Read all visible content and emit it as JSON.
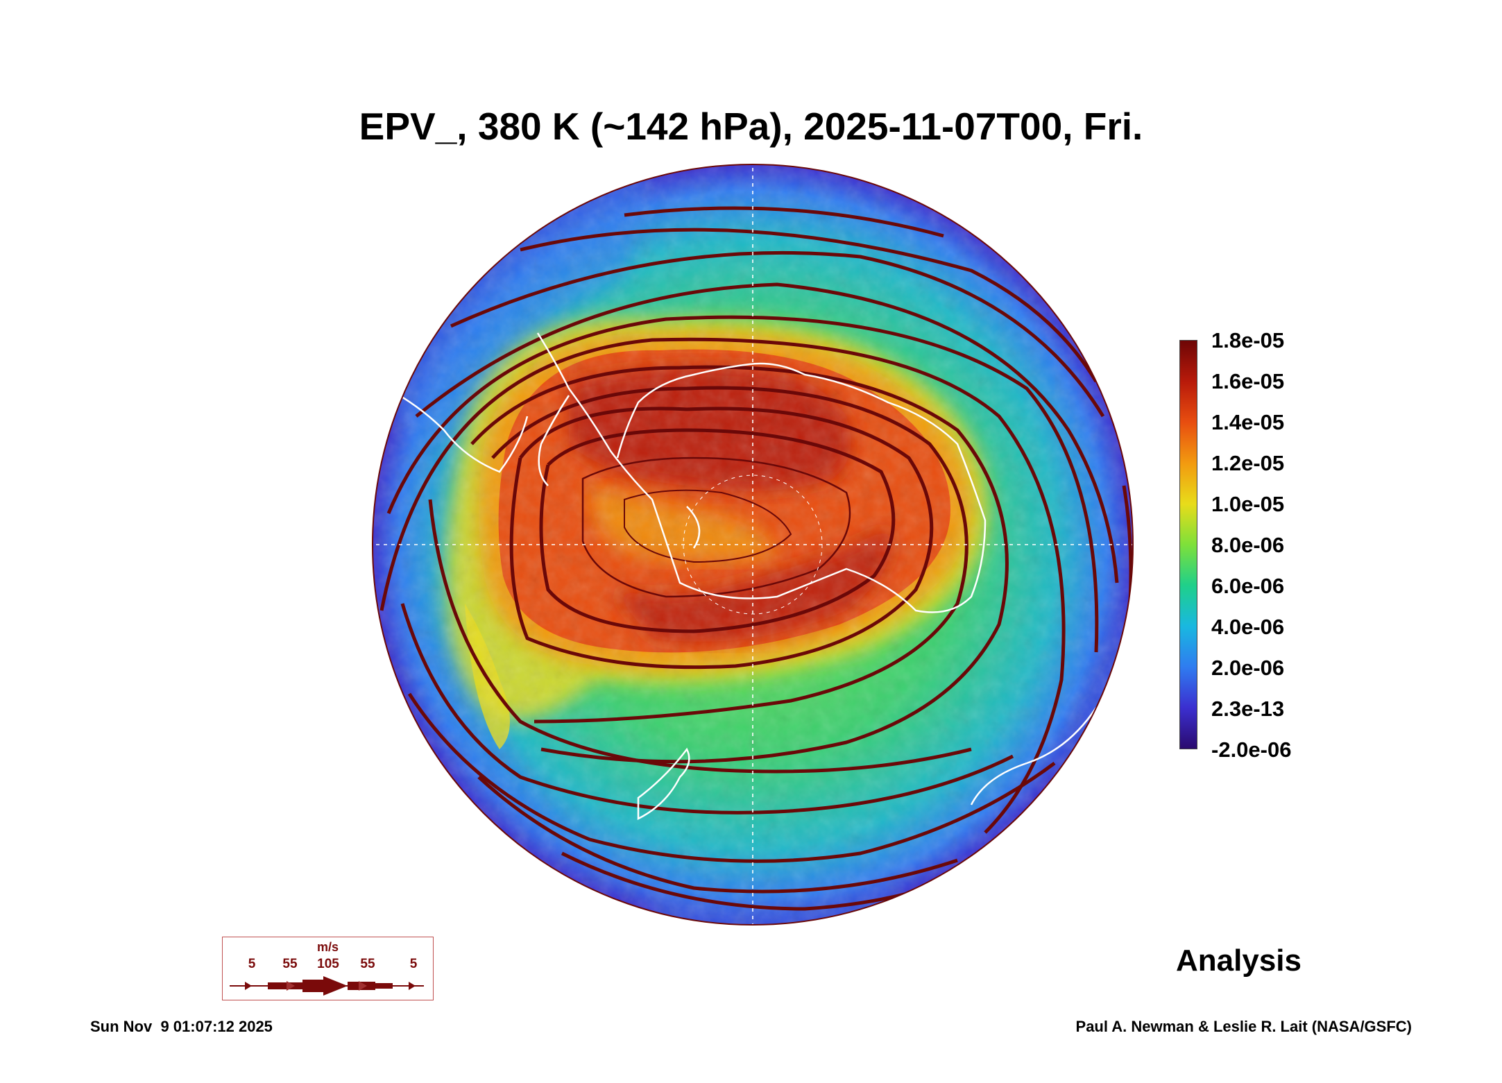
{
  "title": "EPV_, 380 K (~142 hPa), 2025-11-07T00, Fri.",
  "colorbar": {
    "labels": [
      "1.8e-05",
      "1.6e-05",
      "1.4e-05",
      "1.2e-05",
      "1.0e-05",
      "8.0e-06",
      "6.0e-06",
      "4.0e-06",
      "2.0e-06",
      "2.3e-13",
      "-2.0e-06"
    ],
    "colors": [
      "#2a0a6e",
      "#3b2fd0",
      "#2f7cf0",
      "#19b8e0",
      "#1fd08a",
      "#7ee03a",
      "#e8dc1a",
      "#f29a10",
      "#e84e10",
      "#b81a0a",
      "#6e0606"
    ]
  },
  "wind_key": {
    "unit": "m/s",
    "speeds": [
      "5",
      "55",
      "105",
      "55",
      "5"
    ]
  },
  "analysis_label": "Analysis",
  "timestamp": "Sun Nov  9 01:07:12 2025",
  "credit": "Paul A. Newman & Leslie R. Lait (NASA/GSFC)",
  "map": {
    "projection": "south polar orthographic",
    "field": "EPV_",
    "high_pv_color": "#b81a0a",
    "streamline_color": "#6a0808",
    "coastline_color": "#ffffff"
  }
}
